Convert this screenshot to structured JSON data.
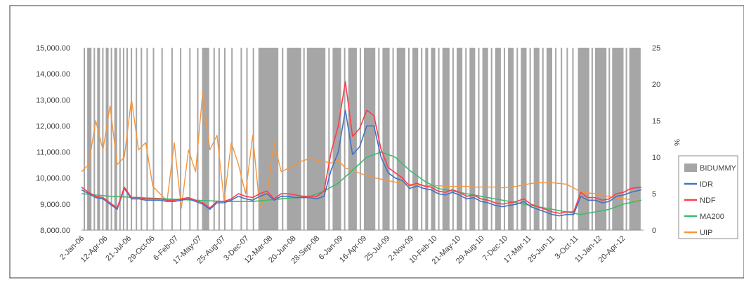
{
  "chart_data": {
    "type": "line",
    "title": "",
    "y_left": {
      "min": 8000,
      "max": 15000,
      "ticks": [
        "8,000.00",
        "9,000.00",
        "10,000.00",
        "11,000.00",
        "12,000.00",
        "13,000.00",
        "14,000.00",
        "15,000.00"
      ]
    },
    "y_right": {
      "label": "%",
      "min": 0,
      "max": 25,
      "ticks": [
        "0",
        "5",
        "10",
        "15",
        "20",
        "25"
      ]
    },
    "x_range": [
      0,
      78.8
    ],
    "x_ticks": [
      "2-Jan-06",
      "12-Apr-06",
      "21-Jul-06",
      "29-Oct-06",
      "6-Feb-07",
      "17-May-07",
      "25-Aug-07",
      "3-Dec-07",
      "12-Mar-08",
      "20-Jun-08",
      "28-Sep-08",
      "6-Jan-09",
      "16-Apr-09",
      "25-Jul-09",
      "2-Nov-09",
      "10-Feb-10",
      "21-May-10",
      "29-Aug-10",
      "7-Dec-10",
      "17-Mar-11",
      "25-Jun-11",
      "3-Oct-11",
      "11-Jan-12",
      "20-Apr-12"
    ],
    "legend_position": "right",
    "grid": false,
    "colors": {
      "bidummy": "#a6a6a6",
      "idr": "#4472c4",
      "ndf": "#ff3b4a",
      "ma200": "#3dbb6e",
      "uip": "#f5963d"
    },
    "legend": [
      {
        "name": "BIDUMMY",
        "kind": "band",
        "color": "#a6a6a6"
      },
      {
        "name": "IDR",
        "kind": "line",
        "color": "#4472c4"
      },
      {
        "name": "NDF",
        "kind": "line",
        "color": "#ff3b4a"
      },
      {
        "name": "MA200",
        "kind": "line",
        "color": "#3dbb6e"
      },
      {
        "name": "UIP",
        "kind": "line",
        "color": "#f5963d"
      }
    ],
    "bidummy_intervals": [
      [
        0.3,
        0.5
      ],
      [
        0.8,
        1.4
      ],
      [
        1.7,
        1.9
      ],
      [
        2.2,
        2.6
      ],
      [
        2.9,
        3.1
      ],
      [
        3.4,
        3.8
      ],
      [
        4.1,
        4.3
      ],
      [
        4.6,
        5.0
      ],
      [
        5.3,
        5.5
      ],
      [
        5.8,
        6.0
      ],
      [
        6.3,
        6.5
      ],
      [
        6.9,
        7.1
      ],
      [
        7.6,
        7.8
      ],
      [
        8.3,
        8.5
      ],
      [
        9.1,
        9.3
      ],
      [
        10.0,
        10.2
      ],
      [
        11.2,
        11.4
      ],
      [
        12.6,
        12.8
      ],
      [
        13.8,
        14.0
      ],
      [
        15.1,
        15.3
      ],
      [
        16.2,
        16.4
      ],
      [
        16.9,
        17.9
      ],
      [
        18.5,
        18.7
      ],
      [
        19.2,
        19.4
      ],
      [
        20.0,
        20.2
      ],
      [
        21.0,
        21.2
      ],
      [
        22.3,
        22.5
      ],
      [
        23.1,
        23.3
      ],
      [
        24.0,
        24.2
      ],
      [
        24.8,
        27.6
      ],
      [
        28.1,
        28.3
      ],
      [
        28.8,
        30.8
      ],
      [
        31.1,
        31.3
      ],
      [
        31.6,
        34.2
      ],
      [
        34.6,
        34.8
      ],
      [
        35.2,
        36.4
      ],
      [
        36.8,
        37.0
      ],
      [
        37.4,
        38.6
      ],
      [
        39.0,
        39.2
      ],
      [
        39.6,
        41.2
      ],
      [
        41.6,
        41.8
      ],
      [
        42.2,
        43.2
      ],
      [
        43.6,
        43.8
      ],
      [
        44.2,
        45.4
      ],
      [
        45.8,
        46.0
      ],
      [
        46.4,
        47.2
      ],
      [
        47.6,
        47.8
      ],
      [
        48.2,
        48.6
      ],
      [
        49.0,
        49.6
      ],
      [
        50.0,
        50.2
      ],
      [
        50.6,
        51.6
      ],
      [
        52.0,
        52.2
      ],
      [
        52.6,
        53.4
      ],
      [
        53.8,
        54.0
      ],
      [
        54.4,
        55.2
      ],
      [
        55.6,
        55.8
      ],
      [
        56.2,
        57.0
      ],
      [
        57.4,
        57.6
      ],
      [
        58.0,
        58.8
      ],
      [
        59.2,
        59.4
      ],
      [
        59.8,
        60.6
      ],
      [
        61.0,
        61.2
      ],
      [
        61.6,
        62.4
      ],
      [
        62.8,
        63.0
      ],
      [
        63.4,
        64.2
      ],
      [
        64.6,
        64.8
      ],
      [
        65.2,
        66.0
      ],
      [
        66.4,
        66.6
      ],
      [
        67.2,
        67.4
      ],
      [
        68.0,
        68.2
      ],
      [
        68.8,
        69.0
      ],
      [
        69.6,
        71.2
      ],
      [
        71.5,
        71.7
      ],
      [
        72.0,
        73.6
      ],
      [
        73.9,
        74.1
      ],
      [
        74.4,
        76.0
      ],
      [
        76.3,
        76.5
      ],
      [
        76.8,
        78.4
      ]
    ],
    "series": [
      {
        "name": "IDR",
        "axis": "left",
        "color": "#4472c4",
        "x": [
          0,
          1,
          2,
          3,
          4,
          5,
          6,
          7,
          8,
          9,
          10,
          11,
          12,
          13,
          14,
          15,
          16,
          17,
          18,
          19,
          20,
          21,
          22,
          23,
          24,
          25,
          26,
          27,
          28,
          29,
          30,
          31,
          32,
          33,
          34,
          35,
          36,
          37,
          38,
          39,
          40,
          41,
          42,
          43,
          44,
          45,
          46,
          47,
          48,
          49,
          50,
          51,
          52,
          53,
          54,
          55,
          56,
          57,
          58,
          59,
          60,
          61,
          62,
          63,
          64,
          65,
          66,
          67,
          68,
          69,
          70,
          71,
          72,
          73,
          74,
          75,
          76,
          77,
          78.5
        ],
        "y": [
          9550,
          9400,
          9250,
          9200,
          9000,
          8800,
          9600,
          9200,
          9200,
          9150,
          9150,
          9150,
          9100,
          9100,
          9150,
          9200,
          9100,
          9000,
          8800,
          9050,
          9050,
          9150,
          9300,
          9200,
          9150,
          9300,
          9400,
          9150,
          9300,
          9300,
          9250,
          9250,
          9250,
          9200,
          9300,
          10300,
          11000,
          12600,
          10900,
          11200,
          12000,
          12000,
          10800,
          10200,
          10000,
          9900,
          9600,
          9700,
          9600,
          9550,
          9400,
          9350,
          9450,
          9350,
          9200,
          9250,
          9100,
          9050,
          8950,
          8900,
          8950,
          9000,
          9100,
          8900,
          8800,
          8700,
          8600,
          8550,
          8600,
          8600,
          9300,
          9150,
          9150,
          9050,
          9100,
          9300,
          9350,
          9450,
          9550
        ]
      },
      {
        "name": "NDF",
        "axis": "left",
        "color": "#ff3b4a",
        "x": [
          0,
          1,
          2,
          3,
          4,
          5,
          6,
          7,
          8,
          9,
          10,
          11,
          12,
          13,
          14,
          15,
          16,
          17,
          18,
          19,
          20,
          21,
          22,
          23,
          24,
          25,
          26,
          27,
          28,
          29,
          30,
          31,
          32,
          33,
          34,
          35,
          36,
          37,
          38,
          39,
          40,
          41,
          42,
          43,
          44,
          45,
          46,
          47,
          48,
          49,
          50,
          51,
          52,
          53,
          54,
          55,
          56,
          57,
          58,
          59,
          60,
          61,
          62,
          63,
          64,
          65,
          66,
          67,
          68,
          69,
          70,
          71,
          72,
          73,
          74,
          75,
          76,
          77,
          78.5
        ],
        "y": [
          9650,
          9450,
          9300,
          9250,
          9050,
          8850,
          9650,
          9250,
          9250,
          9200,
          9200,
          9200,
          9150,
          9150,
          9200,
          9250,
          9150,
          9050,
          8850,
          9100,
          9100,
          9200,
          9400,
          9300,
          9250,
          9400,
          9500,
          9200,
          9400,
          9400,
          9350,
          9300,
          9300,
          9300,
          9500,
          11000,
          12000,
          13700,
          11600,
          11900,
          12600,
          12400,
          11100,
          10400,
          10200,
          10000,
          9700,
          9800,
          9700,
          9650,
          9500,
          9450,
          9550,
          9450,
          9300,
          9350,
          9200,
          9150,
          9050,
          9000,
          9050,
          9100,
          9200,
          9000,
          8900,
          8800,
          8700,
          8650,
          8700,
          8700,
          9450,
          9250,
          9250,
          9150,
          9200,
          9400,
          9450,
          9600,
          9650
        ]
      },
      {
        "name": "MA200",
        "axis": "left",
        "color": "#3dbb6e",
        "x": [
          0,
          4,
          8,
          12,
          16,
          20,
          24,
          28,
          30,
          32,
          34,
          36,
          38,
          40,
          42,
          44,
          46,
          48,
          50,
          52,
          54,
          56,
          58,
          60,
          62,
          64,
          66,
          68,
          70,
          72,
          74,
          76,
          78.5
        ],
        "y": [
          9400,
          9300,
          9250,
          9200,
          9150,
          9100,
          9100,
          9200,
          9250,
          9300,
          9500,
          9800,
          10300,
          10800,
          11000,
          10800,
          10300,
          9900,
          9600,
          9500,
          9400,
          9300,
          9200,
          9100,
          9000,
          8900,
          8800,
          8700,
          8600,
          8700,
          8800,
          9000,
          9150
        ]
      },
      {
        "name": "UIP",
        "axis": "right",
        "color": "#f5963d",
        "x": [
          0,
          1,
          2,
          3,
          4,
          5,
          6,
          7,
          8,
          9,
          10,
          11,
          12,
          13,
          14,
          15,
          16,
          17,
          18,
          19,
          20,
          21,
          22,
          23,
          24,
          25,
          26,
          27,
          28,
          29,
          30,
          31,
          32,
          33,
          34,
          35,
          36,
          37,
          38,
          39,
          40,
          41,
          42,
          43,
          44,
          45,
          46,
          47,
          48,
          49,
          50,
          51,
          52,
          53,
          54,
          55,
          56,
          57,
          58,
          59,
          60,
          61,
          62,
          63,
          64,
          65,
          66,
          67,
          68,
          69,
          70,
          71,
          72,
          73,
          74,
          75,
          76,
          77,
          78.5
        ],
        "y": [
          8,
          9,
          15,
          11,
          17,
          9,
          10,
          18,
          11,
          12,
          6,
          5,
          4,
          12,
          3,
          11,
          8,
          19,
          11,
          13,
          4,
          12,
          9,
          5,
          13,
          3,
          5,
          12,
          8,
          8.5,
          9,
          9.5,
          9.8,
          9.6,
          9.4,
          9.2,
          9.6,
          8.5,
          8.2,
          7.8,
          7.5,
          7.2,
          7,
          6.8,
          6.6,
          6.4,
          6.3,
          6.2,
          6.1,
          6.1,
          6.1,
          6,
          6,
          6,
          6,
          5.9,
          5.9,
          5.9,
          5.9,
          5.8,
          5.9,
          6,
          6.2,
          6.4,
          6.5,
          6.5,
          6.5,
          6.4,
          6.3,
          5.8,
          5.2,
          5.1,
          5,
          4.8,
          4.6,
          4.4,
          4.3,
          4.2,
          4.1
        ]
      }
    ]
  }
}
